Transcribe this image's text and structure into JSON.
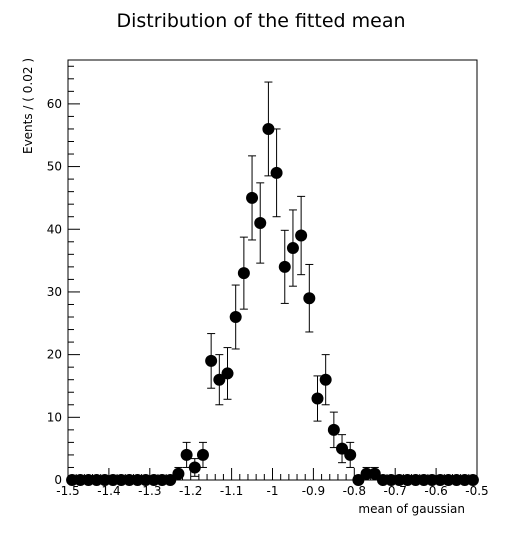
{
  "chart_data": {
    "type": "scatter",
    "title": "Distribution of the fitted mean",
    "xlabel": "mean of gaussian",
    "ylabel": "Events / ( 0.02 )",
    "xlim": [
      -1.5,
      -0.5
    ],
    "ylim": [
      0,
      67
    ],
    "x_ticks": [
      -1.5,
      -1.4,
      -1.3,
      -1.2,
      -1.1,
      -1.0,
      -0.9,
      -0.8,
      -0.7,
      -0.6,
      -0.5
    ],
    "x_tick_labels": [
      "-1.5",
      "-1.4",
      "-1.3",
      "-1.2",
      "-1.1",
      "-1",
      "-0.9",
      "-0.8",
      "-0.7",
      "-0.6",
      "-0.5"
    ],
    "y_ticks": [
      0,
      10,
      20,
      30,
      40,
      50,
      60
    ],
    "y_tick_labels": [
      "0",
      "10",
      "20",
      "30",
      "40",
      "50",
      "60"
    ],
    "marker": "filled-circle",
    "error_bars": true,
    "color": "#000000",
    "series": [
      {
        "x": [
          -1.49,
          -1.47,
          -1.45,
          -1.43,
          -1.41,
          -1.39,
          -1.37,
          -1.35,
          -1.33,
          -1.31,
          -1.29,
          -1.27,
          -1.25,
          -1.23,
          -1.21,
          -1.19,
          -1.17,
          -1.15,
          -1.13,
          -1.11,
          -1.09,
          -1.07,
          -1.05,
          -1.03,
          -1.01,
          -0.99,
          -0.97,
          -0.95,
          -0.93,
          -0.91,
          -0.89,
          -0.87,
          -0.85,
          -0.83,
          -0.81,
          -0.79,
          -0.77,
          -0.75,
          -0.73,
          -0.71,
          -0.69,
          -0.67,
          -0.65,
          -0.63,
          -0.61,
          -0.59,
          -0.57,
          -0.55,
          -0.53,
          -0.51
        ],
        "y": [
          0,
          0,
          0,
          0,
          0,
          0,
          0,
          0,
          0,
          0,
          0,
          0,
          0,
          1,
          4,
          2,
          4,
          19,
          16,
          17,
          26,
          33,
          45,
          41,
          56,
          49,
          34,
          37,
          39,
          29,
          13,
          16,
          8,
          5,
          4,
          0,
          1,
          1,
          0,
          0,
          0,
          0,
          0,
          0,
          0,
          0,
          0,
          0,
          0,
          0
        ]
      }
    ]
  }
}
